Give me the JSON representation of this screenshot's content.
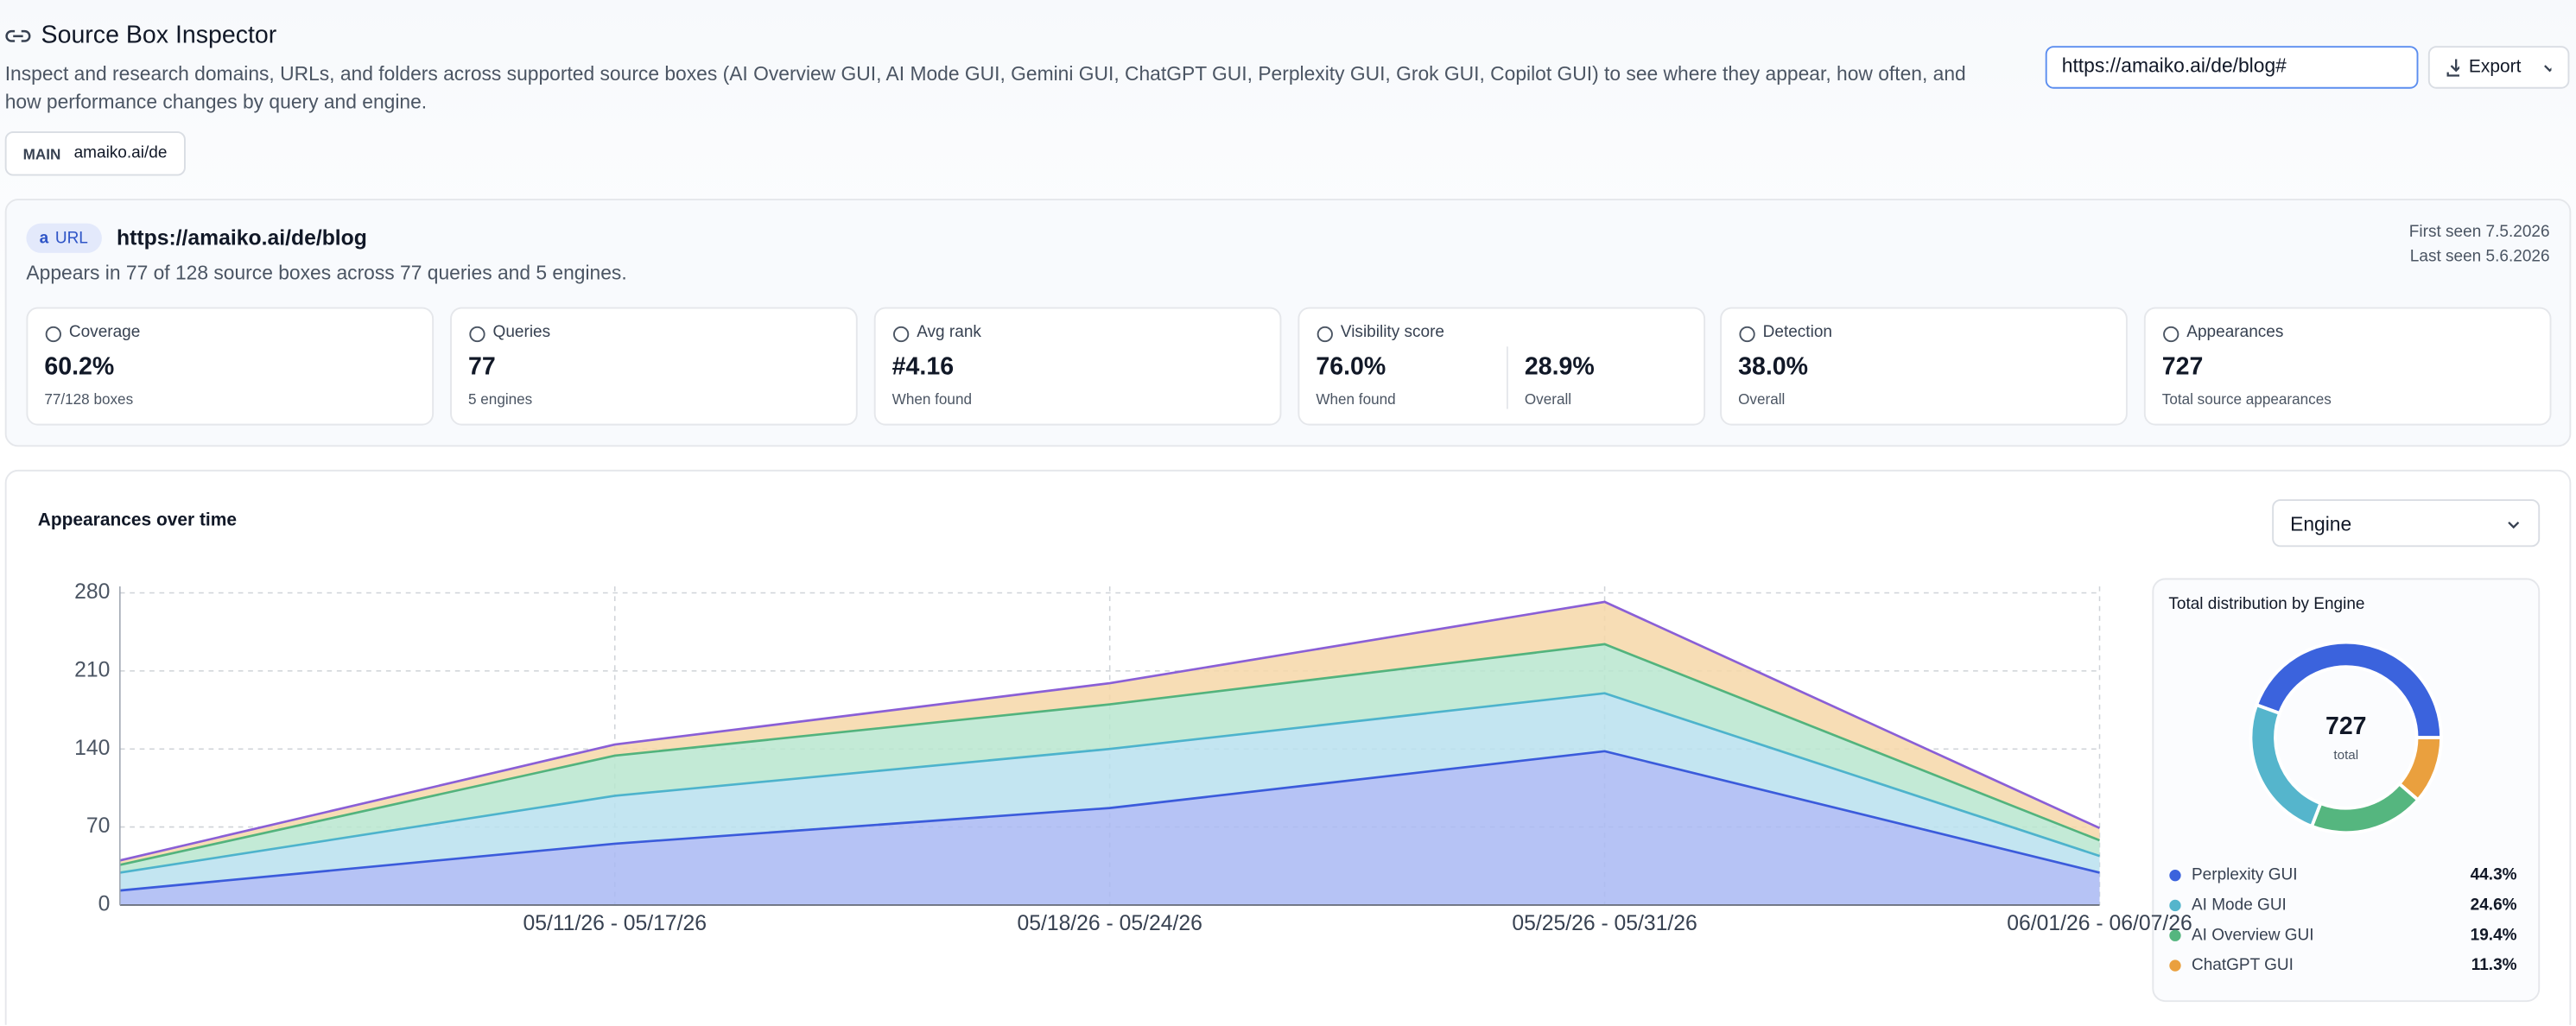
{
  "header": {
    "title": "Source Box Inspector",
    "description": "Inspect and research domains, URLs, and folders across supported source boxes (AI Overview GUI, AI Mode GUI, Gemini GUI, ChatGPT GUI, Perplexity GUI, Grok GUI, Copilot GUI) to see where they appear, how often, and how performance changes by query and engine."
  },
  "url_input": "https://amaiko.ai/de/blog#",
  "export_button": "Export",
  "scope_chip": {
    "label": "MAIN",
    "value": "amaiko.ai/de"
  },
  "summary": {
    "badge": "URL",
    "url": "https://amaiko.ai/de/blog",
    "description": "Appears in 77 of 128 source boxes across 77 queries and 5 engines.",
    "first_seen": "First seen 7.5.2026",
    "last_seen": "Last seen 5.6.2026"
  },
  "metrics": [
    {
      "label": "Coverage",
      "value": "60.2%",
      "note": "77/128 boxes"
    },
    {
      "label": "Queries",
      "value": "77",
      "note": "5 engines"
    },
    {
      "label": "Avg rank",
      "value": "#4.16",
      "note": "When found"
    },
    {
      "label": "Visibility score",
      "value": "76.0%",
      "note": "When found",
      "value2": "28.9%",
      "note2": "Overall"
    },
    {
      "label": "Detection",
      "value": "38.0%",
      "note": "Overall"
    },
    {
      "label": "Appearances",
      "value": "727",
      "note": "Total source appearances"
    }
  ],
  "chart_section": {
    "title": "Appearances over time",
    "group_select": "Engine"
  },
  "chart_data": [
    {
      "type": "area",
      "stacked": true,
      "categories": [
        null,
        "05/11/26 - 05/17/26",
        "05/18/26 - 05/24/26",
        "05/25/26 - 05/31/26",
        "06/01/26 - 06/07/26"
      ],
      "series": [
        {
          "name": "Perplexity GUI",
          "color": "#a9b8f3",
          "line_color": "#3b5bdb",
          "values": [
            13,
            55,
            87,
            138,
            29
          ]
        },
        {
          "name": "AI Mode GUI",
          "color": "#b8e1ee",
          "line_color": "#4db3cc",
          "values": [
            16,
            43,
            53,
            52,
            15
          ]
        },
        {
          "name": "AI Overview GUI",
          "color": "#b9e6cf",
          "line_color": "#52b37d",
          "values": [
            7,
            36,
            40,
            44,
            14
          ]
        },
        {
          "name": "ChatGPT GUI",
          "color": "#f6d7a8",
          "line_color": "#8a5fd6",
          "values": [
            4,
            10,
            19,
            38,
            11
          ]
        }
      ],
      "ylim": [
        0,
        280
      ],
      "yticks": [
        0,
        70,
        140,
        210,
        280
      ],
      "grid": true
    },
    {
      "type": "donut",
      "title": "Total distribution by Engine",
      "center_value": 727,
      "center_label": "total",
      "categories": [
        "Perplexity GUI",
        "AI Mode GUI",
        "AI Overview GUI",
        "ChatGPT GUI"
      ],
      "values": [
        44.3,
        24.6,
        19.4,
        11.3
      ],
      "value_labels": [
        "44.3%",
        "24.6%",
        "19.4%",
        "11.3%"
      ],
      "colors": [
        "#3b63dd",
        "#55b5cc",
        "#55b67f",
        "#eaa03e"
      ]
    }
  ]
}
